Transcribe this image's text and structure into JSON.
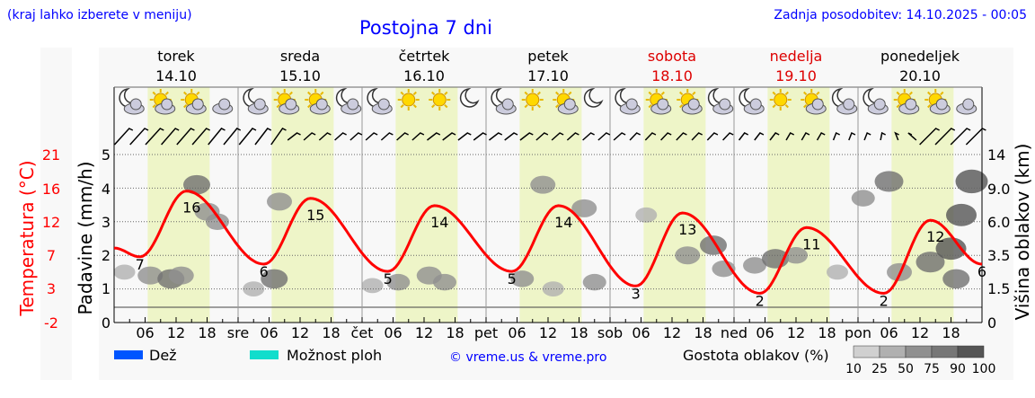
{
  "header": {
    "hint": "(kraj lahko izberete v meniju)",
    "title": "Postojna 7 dni",
    "updated": "Zadnja posodobitev: 14.10.2025 - 00:05"
  },
  "days": [
    {
      "name": "torek",
      "date": "14.10",
      "weekend": false,
      "abbr": ""
    },
    {
      "name": "sreda",
      "date": "15.10",
      "weekend": false,
      "abbr": "sre"
    },
    {
      "name": "četrtek",
      "date": "16.10",
      "weekend": false,
      "abbr": "čet"
    },
    {
      "name": "petek",
      "date": "17.10",
      "weekend": false,
      "abbr": "pet"
    },
    {
      "name": "sobota",
      "date": "18.10",
      "weekend": true,
      "abbr": "sob"
    },
    {
      "name": "nedelja",
      "date": "19.10",
      "weekend": true,
      "abbr": "ned"
    },
    {
      "name": "ponedeljek",
      "date": "20.10",
      "weekend": false,
      "abbr": "pon"
    }
  ],
  "icons": [
    [
      "moon-cloud",
      "sun-cloud",
      "sun-cloud",
      "cloud"
    ],
    [
      "moon-cloud",
      "sun-cloud",
      "sun-cloud",
      "moon-cloud"
    ],
    [
      "moon-cloud",
      "sun",
      "sun",
      "moon"
    ],
    [
      "moon-cloud",
      "sun",
      "sun-cloud",
      "moon"
    ],
    [
      "moon-cloud",
      "sun-cloud",
      "sun-cloud",
      "moon-cloud"
    ],
    [
      "moon-cloud",
      "sun",
      "sun-cloud",
      "moon-cloud"
    ],
    [
      "moon-cloud",
      "sun-cloud",
      "sun-cloud",
      "cloud"
    ]
  ],
  "wind_angles_deg": [
    25,
    25,
    25,
    30,
    30,
    30,
    35,
    35,
    35,
    40,
    45,
    55,
    60,
    60,
    60,
    60,
    60,
    60,
    60,
    60,
    55,
    55,
    55,
    55,
    55,
    55,
    55,
    60,
    60,
    60,
    60,
    60,
    60,
    65,
    65,
    65,
    65,
    65,
    65,
    65,
    70,
    70,
    70,
    75,
    75,
    75,
    80,
    80,
    80,
    85,
    100,
    120,
    0,
    10,
    5,
    0
  ],
  "hour_labels": [
    "06",
    "12",
    "18"
  ],
  "colors": {
    "temp": "#ff0000",
    "daylight": "#eef5c8",
    "rain": "#0055ff",
    "showers": "#11ddcc",
    "title": "#0000ff",
    "weekend": "#dd0000"
  },
  "legend": {
    "rain": "Dež",
    "showers": "Možnost ploh",
    "copyright": "© vreme.us & vreme.pro",
    "cloud_density": "Gostota oblakov (%)",
    "density_levels": [
      "10",
      "25",
      "50",
      "75",
      "90",
      "100"
    ]
  },
  "chart_data": {
    "type": "line",
    "title": "Postojna 7 dni",
    "ylabel_left_temp": "Temperatura (°C)",
    "ylabel_left_precip": "Padavine (mm/h)",
    "ylabel_right": "Višina oblakov (km)",
    "temp_ticks": [
      "21",
      "16",
      "12",
      "7",
      "3",
      "-2"
    ],
    "precip_ticks": [
      "5",
      "4",
      "3",
      "2",
      "1",
      "0"
    ],
    "cloud_ticks": [
      "14",
      "9.0",
      "6.0",
      "3.5",
      "1.5",
      "0"
    ],
    "temp_range": [
      -2,
      21
    ],
    "precip_range": [
      0,
      5
    ],
    "x_range_hours": [
      0,
      168
    ],
    "temperature_points": [
      [
        0,
        8.2
      ],
      [
        5,
        7
      ],
      [
        14,
        16
      ],
      [
        29,
        6
      ],
      [
        38,
        15
      ],
      [
        53,
        5
      ],
      [
        62,
        14
      ],
      [
        77,
        5
      ],
      [
        86,
        14
      ],
      [
        101,
        3
      ],
      [
        110,
        13
      ],
      [
        125,
        2
      ],
      [
        134,
        11
      ],
      [
        149,
        2
      ],
      [
        158,
        12
      ],
      [
        168,
        6
      ]
    ],
    "temp_labels": [
      {
        "h": 5,
        "t": "7"
      },
      {
        "h": 15,
        "t": "16"
      },
      {
        "h": 29,
        "t": "6"
      },
      {
        "h": 39,
        "t": "15"
      },
      {
        "h": 53,
        "t": "5"
      },
      {
        "h": 63,
        "t": "14"
      },
      {
        "h": 77,
        "t": "5"
      },
      {
        "h": 87,
        "t": "14"
      },
      {
        "h": 101,
        "t": "3"
      },
      {
        "h": 111,
        "t": "13"
      },
      {
        "h": 125,
        "t": "2"
      },
      {
        "h": 135,
        "t": "11"
      },
      {
        "h": 149,
        "t": "2"
      },
      {
        "h": 159,
        "t": "12"
      },
      {
        "h": 168,
        "t": "6"
      }
    ],
    "precipitation": [],
    "cloud_blobs": [
      [
        2,
        1.5,
        0.3
      ],
      [
        7,
        1.4,
        0.5
      ],
      [
        11,
        1.3,
        0.6
      ],
      [
        13,
        1.4,
        0.5
      ],
      [
        16,
        4.1,
        0.6
      ],
      [
        18,
        3.3,
        0.5
      ],
      [
        20,
        3.0,
        0.4
      ],
      [
        27,
        1.0,
        0.3
      ],
      [
        31,
        1.3,
        0.6
      ],
      [
        32,
        3.6,
        0.5
      ],
      [
        50,
        1.1,
        0.3
      ],
      [
        55,
        1.2,
        0.4
      ],
      [
        61,
        1.4,
        0.5
      ],
      [
        64,
        1.2,
        0.4
      ],
      [
        79,
        1.3,
        0.4
      ],
      [
        83,
        4.1,
        0.5
      ],
      [
        85,
        1.0,
        0.3
      ],
      [
        91,
        3.4,
        0.5
      ],
      [
        93,
        1.2,
        0.4
      ],
      [
        103,
        3.2,
        0.3
      ],
      [
        111,
        2.0,
        0.5
      ],
      [
        116,
        2.3,
        0.6
      ],
      [
        118,
        1.6,
        0.4
      ],
      [
        124,
        1.7,
        0.4
      ],
      [
        128,
        1.9,
        0.6
      ],
      [
        132,
        2.0,
        0.4
      ],
      [
        140,
        1.5,
        0.3
      ],
      [
        145,
        3.7,
        0.4
      ],
      [
        150,
        4.2,
        0.7
      ],
      [
        152,
        1.5,
        0.5
      ],
      [
        158,
        1.8,
        0.7
      ],
      [
        162,
        2.2,
        0.8
      ],
      [
        164,
        3.2,
        0.8
      ],
      [
        166,
        4.2,
        0.9
      ],
      [
        163,
        1.3,
        0.6
      ]
    ]
  }
}
